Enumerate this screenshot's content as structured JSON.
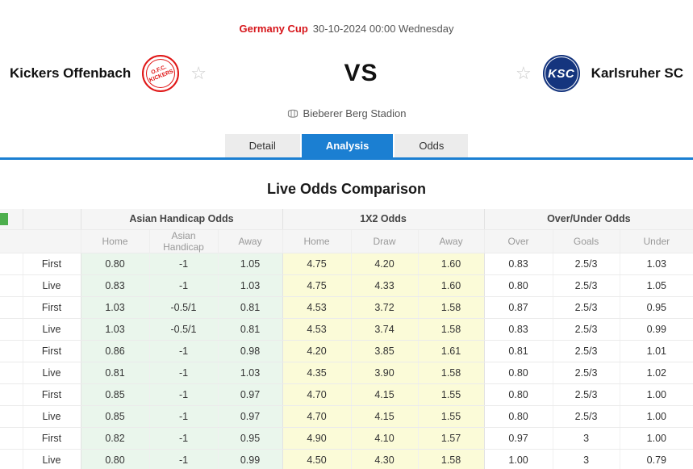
{
  "header": {
    "league": "Germany Cup",
    "datetime": "30-10-2024 00:00 Wednesday",
    "home_team": "Kickers Offenbach",
    "away_team": "Karlsruher SC",
    "vs_label": "VS",
    "venue": "Bieberer Berg Stadion",
    "home_logo_line1": "O.F.C.",
    "home_logo_line2": "KICKERS",
    "away_logo_text": "KSC",
    "favorite_star_glyph": "☆"
  },
  "tabs": [
    {
      "label": "Detail"
    },
    {
      "label": "Analysis"
    },
    {
      "label": "Odds"
    }
  ],
  "section_title": "Live Odds Comparison",
  "colors": {
    "accent_blue": "#1b7fd2",
    "league_red": "#d6151a",
    "asian_handicap_bg": "#eaf6ec",
    "x12_bg": "#fbfbd8",
    "home_logo_red": "#e01616",
    "away_logo_navy": "#15357e"
  },
  "table": {
    "groups": [
      "Asian Handicap Odds",
      "1X2 Odds",
      "Over/Under Odds"
    ],
    "subheaders": [
      "Home",
      "Asian Handicap",
      "Away",
      "Home",
      "Draw",
      "Away",
      "Over",
      "Goals",
      "Under"
    ],
    "rows": [
      {
        "period": "First",
        "cells": [
          "0.80",
          "-1",
          "1.05",
          "4.75",
          "4.20",
          "1.60",
          "0.83",
          "2.5/3",
          "1.03"
        ]
      },
      {
        "period": "Live",
        "cells": [
          "0.83",
          "-1",
          "1.03",
          "4.75",
          "4.33",
          "1.60",
          "0.80",
          "2.5/3",
          "1.05"
        ]
      },
      {
        "period": "First",
        "cells": [
          "1.03",
          "-0.5/1",
          "0.81",
          "4.53",
          "3.72",
          "1.58",
          "0.87",
          "2.5/3",
          "0.95"
        ]
      },
      {
        "period": "Live",
        "cells": [
          "1.03",
          "-0.5/1",
          "0.81",
          "4.53",
          "3.74",
          "1.58",
          "0.83",
          "2.5/3",
          "0.99"
        ]
      },
      {
        "period": "First",
        "cells": [
          "0.86",
          "-1",
          "0.98",
          "4.20",
          "3.85",
          "1.61",
          "0.81",
          "2.5/3",
          "1.01"
        ]
      },
      {
        "period": "Live",
        "cells": [
          "0.81",
          "-1",
          "1.03",
          "4.35",
          "3.90",
          "1.58",
          "0.80",
          "2.5/3",
          "1.02"
        ]
      },
      {
        "period": "First",
        "cells": [
          "0.85",
          "-1",
          "0.97",
          "4.70",
          "4.15",
          "1.55",
          "0.80",
          "2.5/3",
          "1.00"
        ]
      },
      {
        "period": "Live",
        "cells": [
          "0.85",
          "-1",
          "0.97",
          "4.70",
          "4.15",
          "1.55",
          "0.80",
          "2.5/3",
          "1.00"
        ]
      },
      {
        "period": "First",
        "cells": [
          "0.82",
          "-1",
          "0.95",
          "4.90",
          "4.10",
          "1.57",
          "0.97",
          "3",
          "1.00"
        ]
      },
      {
        "period": "Live",
        "cells": [
          "0.80",
          "-1",
          "0.99",
          "4.50",
          "4.30",
          "1.58",
          "1.00",
          "3",
          "0.79"
        ]
      }
    ]
  }
}
